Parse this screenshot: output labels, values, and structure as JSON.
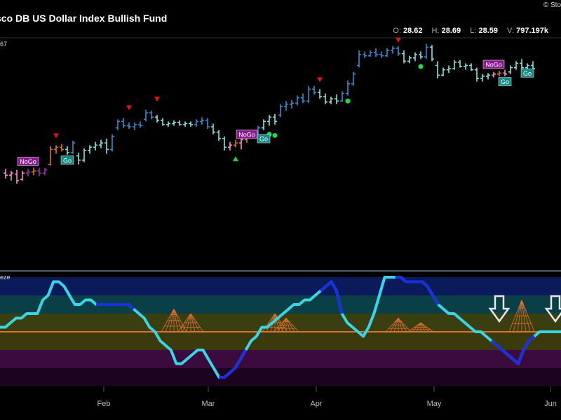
{
  "header": {
    "title": "sco DB US Dollar Index Bullish Fund",
    "brand": "© Sto",
    "ohlc": [
      {
        "k": "O:",
        "v": "28.62"
      },
      {
        "k": "H:",
        "v": "28.69"
      },
      {
        "k": "L:",
        "v": "28.59"
      },
      {
        "k": "V:",
        "v": "797.197k"
      }
    ],
    "volume_tag": "67",
    "indicator_tag": "eze"
  },
  "chart_data": {
    "type": "line",
    "x_ticks": [
      "Feb",
      "Mar",
      "Apr",
      "May",
      "Jun"
    ],
    "colors": {
      "strong_go": "#2a8fd8",
      "go": "#7fe6e0",
      "nogo": "#9a2fb0",
      "weak_nogo": "#ff8ad0",
      "counter": "#e07030",
      "triangle_down": "#e8101c",
      "triangle_up": "#20d040",
      "dot": "#10e050",
      "osc_fast": "#39d5e5",
      "osc_slow": "#1a2fe0",
      "osc_zero": "#e07030"
    },
    "price_bars": [
      {
        "t": 0,
        "o": 27.62,
        "h": 27.66,
        "l": 27.57,
        "c": 27.6,
        "s": "weak_nogo"
      },
      {
        "t": 1,
        "o": 27.6,
        "h": 27.64,
        "l": 27.55,
        "c": 27.62,
        "s": "weak_nogo"
      },
      {
        "t": 2,
        "o": 27.61,
        "h": 27.65,
        "l": 27.52,
        "c": 27.55,
        "s": "weak_nogo"
      },
      {
        "t": 3,
        "o": 27.56,
        "h": 27.64,
        "l": 27.55,
        "c": 27.62,
        "s": "weak_nogo"
      },
      {
        "t": 4,
        "o": 27.62,
        "h": 27.66,
        "l": 27.59,
        "c": 27.63,
        "s": "nogo"
      },
      {
        "t": 5,
        "o": 27.63,
        "h": 27.67,
        "l": 27.6,
        "c": 27.64,
        "s": "counter"
      },
      {
        "t": 6,
        "o": 27.64,
        "h": 27.67,
        "l": 27.59,
        "c": 27.62,
        "s": "nogo"
      },
      {
        "t": 7,
        "o": 27.62,
        "h": 27.67,
        "l": 27.6,
        "c": 27.65,
        "s": "nogo"
      },
      {
        "t": 8,
        "o": 27.7,
        "h": 27.87,
        "l": 27.69,
        "c": 27.84,
        "s": "counter"
      },
      {
        "t": 9,
        "o": 27.84,
        "h": 27.88,
        "l": 27.8,
        "c": 27.86,
        "s": "counter"
      },
      {
        "t": 10,
        "o": 27.86,
        "h": 27.89,
        "l": 27.82,
        "c": 27.84,
        "s": "counter"
      },
      {
        "t": 11,
        "o": 27.84,
        "h": 27.87,
        "l": 27.79,
        "c": 27.81,
        "s": "go"
      },
      {
        "t": 12,
        "o": 27.81,
        "h": 27.92,
        "l": 27.8,
        "c": 27.9,
        "s": "strong_go"
      },
      {
        "t": 13,
        "o": 27.78,
        "h": 27.81,
        "l": 27.7,
        "c": 27.74,
        "s": "go"
      },
      {
        "t": 14,
        "o": 27.74,
        "h": 27.85,
        "l": 27.72,
        "c": 27.83,
        "s": "go"
      },
      {
        "t": 15,
        "o": 27.83,
        "h": 27.88,
        "l": 27.8,
        "c": 27.86,
        "s": "go"
      },
      {
        "t": 16,
        "o": 27.86,
        "h": 27.91,
        "l": 27.83,
        "c": 27.88,
        "s": "go"
      },
      {
        "t": 17,
        "o": 27.88,
        "h": 27.93,
        "l": 27.85,
        "c": 27.9,
        "s": "go"
      },
      {
        "t": 18,
        "o": 27.9,
        "h": 27.94,
        "l": 27.8,
        "c": 27.84,
        "s": "go"
      },
      {
        "t": 19,
        "o": 27.84,
        "h": 27.98,
        "l": 27.82,
        "c": 27.96,
        "s": "strong_go"
      },
      {
        "t": 20,
        "o": 28.04,
        "h": 28.12,
        "l": 28.02,
        "c": 28.1,
        "s": "strong_go"
      },
      {
        "t": 21,
        "o": 28.1,
        "h": 28.13,
        "l": 28.04,
        "c": 28.06,
        "s": "strong_go"
      },
      {
        "t": 22,
        "o": 28.06,
        "h": 28.09,
        "l": 28.03,
        "c": 28.05,
        "s": "strong_go"
      },
      {
        "t": 23,
        "o": 28.05,
        "h": 28.09,
        "l": 28.02,
        "c": 28.07,
        "s": "strong_go"
      },
      {
        "t": 24,
        "o": 28.07,
        "h": 28.1,
        "l": 28.04,
        "c": 28.06,
        "s": "strong_go"
      },
      {
        "t": 25,
        "o": 28.12,
        "h": 28.21,
        "l": 28.1,
        "c": 28.18,
        "s": "strong_go"
      },
      {
        "t": 26,
        "o": 28.18,
        "h": 28.2,
        "l": 28.12,
        "c": 28.14,
        "s": "strong_go"
      },
      {
        "t": 27,
        "o": 28.14,
        "h": 28.16,
        "l": 28.09,
        "c": 28.11,
        "s": "go"
      },
      {
        "t": 28,
        "o": 28.11,
        "h": 28.13,
        "l": 28.06,
        "c": 28.07,
        "s": "go"
      },
      {
        "t": 29,
        "o": 28.07,
        "h": 28.1,
        "l": 28.05,
        "c": 28.08,
        "s": "go"
      },
      {
        "t": 30,
        "o": 28.08,
        "h": 28.11,
        "l": 28.06,
        "c": 28.09,
        "s": "go"
      },
      {
        "t": 31,
        "o": 28.09,
        "h": 28.11,
        "l": 28.06,
        "c": 28.07,
        "s": "go"
      },
      {
        "t": 32,
        "o": 28.07,
        "h": 28.1,
        "l": 28.05,
        "c": 28.08,
        "s": "go"
      },
      {
        "t": 33,
        "o": 28.08,
        "h": 28.1,
        "l": 28.05,
        "c": 28.07,
        "s": "go"
      },
      {
        "t": 34,
        "o": 28.07,
        "h": 28.12,
        "l": 28.05,
        "c": 28.1,
        "s": "strong_go"
      },
      {
        "t": 35,
        "o": 28.1,
        "h": 28.14,
        "l": 28.07,
        "c": 28.11,
        "s": "strong_go"
      },
      {
        "t": 36,
        "o": 28.11,
        "h": 28.13,
        "l": 28.03,
        "c": 28.05,
        "s": "strong_go"
      },
      {
        "t": 37,
        "o": 28.05,
        "h": 28.08,
        "l": 27.98,
        "c": 28.0,
        "s": "go"
      },
      {
        "t": 38,
        "o": 28.0,
        "h": 28.02,
        "l": 27.92,
        "c": 27.94,
        "s": "go"
      },
      {
        "t": 39,
        "o": 27.94,
        "h": 27.96,
        "l": 27.83,
        "c": 27.86,
        "s": "go"
      },
      {
        "t": 40,
        "o": 27.86,
        "h": 27.91,
        "l": 27.83,
        "c": 27.88,
        "s": "weak_nogo"
      },
      {
        "t": 41,
        "o": 27.88,
        "h": 27.93,
        "l": 27.86,
        "c": 27.9,
        "s": "counter"
      },
      {
        "t": 42,
        "o": 27.9,
        "h": 27.95,
        "l": 27.84,
        "c": 27.93,
        "s": "weak_nogo"
      },
      {
        "t": 43,
        "o": 27.93,
        "h": 27.98,
        "l": 27.9,
        "c": 27.96,
        "s": "counter"
      },
      {
        "t": 44,
        "o": 27.96,
        "h": 28.02,
        "l": 27.94,
        "c": 28.0,
        "s": "counter"
      },
      {
        "t": 45,
        "o": 28.0,
        "h": 28.06,
        "l": 27.98,
        "c": 28.04,
        "s": "strong_go"
      },
      {
        "t": 46,
        "o": 28.04,
        "h": 28.12,
        "l": 28.02,
        "c": 28.1,
        "s": "go"
      },
      {
        "t": 47,
        "o": 28.1,
        "h": 28.16,
        "l": 28.06,
        "c": 28.14,
        "s": "go"
      },
      {
        "t": 48,
        "o": 28.14,
        "h": 28.17,
        "l": 28.07,
        "c": 28.1,
        "s": "go"
      },
      {
        "t": 49,
        "o": 28.16,
        "h": 28.26,
        "l": 28.14,
        "c": 28.24,
        "s": "strong_go"
      },
      {
        "t": 50,
        "o": 28.24,
        "h": 28.29,
        "l": 28.2,
        "c": 28.26,
        "s": "strong_go"
      },
      {
        "t": 51,
        "o": 28.26,
        "h": 28.3,
        "l": 28.22,
        "c": 28.27,
        "s": "strong_go"
      },
      {
        "t": 52,
        "o": 28.27,
        "h": 28.34,
        "l": 28.25,
        "c": 28.32,
        "s": "strong_go"
      },
      {
        "t": 53,
        "o": 28.32,
        "h": 28.36,
        "l": 28.27,
        "c": 28.29,
        "s": "strong_go"
      },
      {
        "t": 54,
        "o": 28.29,
        "h": 28.43,
        "l": 28.27,
        "c": 28.4,
        "s": "strong_go"
      },
      {
        "t": 55,
        "o": 28.4,
        "h": 28.43,
        "l": 28.35,
        "c": 28.37,
        "s": "strong_go"
      },
      {
        "t": 56,
        "o": 28.37,
        "h": 28.4,
        "l": 28.31,
        "c": 28.33,
        "s": "go"
      },
      {
        "t": 57,
        "o": 28.33,
        "h": 28.36,
        "l": 28.26,
        "c": 28.28,
        "s": "go"
      },
      {
        "t": 58,
        "o": 28.28,
        "h": 28.33,
        "l": 28.26,
        "c": 28.31,
        "s": "go"
      },
      {
        "t": 59,
        "o": 28.31,
        "h": 28.35,
        "l": 28.26,
        "c": 28.29,
        "s": "go"
      },
      {
        "t": 60,
        "o": 28.29,
        "h": 28.38,
        "l": 28.28,
        "c": 28.36,
        "s": "strong_go"
      },
      {
        "t": 61,
        "o": 28.36,
        "h": 28.48,
        "l": 28.34,
        "c": 28.45,
        "s": "strong_go"
      },
      {
        "t": 62,
        "o": 28.45,
        "h": 28.56,
        "l": 28.43,
        "c": 28.54,
        "s": "strong_go"
      },
      {
        "t": 63,
        "o": 28.62,
        "h": 28.76,
        "l": 28.6,
        "c": 28.72,
        "s": "strong_go"
      },
      {
        "t": 64,
        "o": 28.72,
        "h": 28.75,
        "l": 28.69,
        "c": 28.71,
        "s": "strong_go"
      },
      {
        "t": 65,
        "o": 28.71,
        "h": 28.76,
        "l": 28.7,
        "c": 28.74,
        "s": "strong_go"
      },
      {
        "t": 66,
        "o": 28.74,
        "h": 28.78,
        "l": 28.7,
        "c": 28.72,
        "s": "strong_go"
      },
      {
        "t": 67,
        "o": 28.72,
        "h": 28.75,
        "l": 28.69,
        "c": 28.71,
        "s": "strong_go"
      },
      {
        "t": 68,
        "o": 28.71,
        "h": 28.78,
        "l": 28.7,
        "c": 28.76,
        "s": "strong_go"
      },
      {
        "t": 69,
        "o": 28.76,
        "h": 28.8,
        "l": 28.73,
        "c": 28.78,
        "s": "strong_go"
      },
      {
        "t": 70,
        "o": 28.78,
        "h": 28.8,
        "l": 28.71,
        "c": 28.73,
        "s": "strong_go"
      },
      {
        "t": 71,
        "o": 28.73,
        "h": 28.76,
        "l": 28.64,
        "c": 28.66,
        "s": "go"
      },
      {
        "t": 72,
        "o": 28.66,
        "h": 28.71,
        "l": 28.64,
        "c": 28.69,
        "s": "go"
      },
      {
        "t": 73,
        "o": 28.69,
        "h": 28.74,
        "l": 28.66,
        "c": 28.72,
        "s": "go"
      },
      {
        "t": 74,
        "o": 28.72,
        "h": 28.75,
        "l": 28.68,
        "c": 28.7,
        "s": "go"
      },
      {
        "t": 75,
        "o": 28.7,
        "h": 28.82,
        "l": 28.68,
        "c": 28.79,
        "s": "strong_go"
      },
      {
        "t": 76,
        "o": 28.79,
        "h": 28.81,
        "l": 28.66,
        "c": 28.68,
        "s": "go"
      },
      {
        "t": 77,
        "o": 28.62,
        "h": 28.66,
        "l": 28.5,
        "c": 28.53,
        "s": "go"
      },
      {
        "t": 78,
        "o": 28.53,
        "h": 28.6,
        "l": 28.52,
        "c": 28.58,
        "s": "go"
      },
      {
        "t": 79,
        "o": 28.58,
        "h": 28.62,
        "l": 28.55,
        "c": 28.59,
        "s": "go"
      },
      {
        "t": 80,
        "o": 28.59,
        "h": 28.67,
        "l": 28.58,
        "c": 28.65,
        "s": "go"
      },
      {
        "t": 81,
        "o": 28.65,
        "h": 28.67,
        "l": 28.6,
        "c": 28.61,
        "s": "go"
      },
      {
        "t": 82,
        "o": 28.61,
        "h": 28.64,
        "l": 28.58,
        "c": 28.62,
        "s": "go"
      },
      {
        "t": 83,
        "o": 28.62,
        "h": 28.64,
        "l": 28.57,
        "c": 28.58,
        "s": "go"
      },
      {
        "t": 84,
        "o": 28.58,
        "h": 28.6,
        "l": 28.47,
        "c": 28.5,
        "s": "go"
      },
      {
        "t": 85,
        "o": 28.5,
        "h": 28.54,
        "l": 28.47,
        "c": 28.52,
        "s": "go"
      },
      {
        "t": 86,
        "o": 28.52,
        "h": 28.55,
        "l": 28.49,
        "c": 28.53,
        "s": "go"
      },
      {
        "t": 87,
        "o": 28.53,
        "h": 28.56,
        "l": 28.51,
        "c": 28.54,
        "s": "weak_nogo"
      },
      {
        "t": 88,
        "o": 28.54,
        "h": 28.57,
        "l": 28.52,
        "c": 28.55,
        "s": "counter"
      },
      {
        "t": 89,
        "o": 28.55,
        "h": 28.58,
        "l": 28.52,
        "c": 28.54,
        "s": "weak_nogo"
      },
      {
        "t": 90,
        "o": 28.56,
        "h": 28.62,
        "l": 28.54,
        "c": 28.6,
        "s": "go"
      },
      {
        "t": 91,
        "o": 28.6,
        "h": 28.66,
        "l": 28.58,
        "c": 28.64,
        "s": "go"
      },
      {
        "t": 92,
        "o": 28.64,
        "h": 28.68,
        "l": 28.58,
        "c": 28.6,
        "s": "go"
      },
      {
        "t": 93,
        "o": 28.6,
        "h": 28.64,
        "l": 28.55,
        "c": 28.62,
        "s": "go"
      },
      {
        "t": 94,
        "o": 28.62,
        "h": 28.66,
        "l": 28.57,
        "c": 28.59,
        "s": "go"
      }
    ],
    "markers": [
      {
        "type": "triangle_down",
        "t": 9,
        "v": 27.97
      },
      {
        "type": "triangle_down",
        "t": 22,
        "v": 28.23
      },
      {
        "type": "triangle_down",
        "t": 27,
        "v": 28.31
      },
      {
        "type": "triangle_up",
        "t": 41,
        "v": 27.75
      },
      {
        "type": "triangle_down",
        "t": 56,
        "v": 28.49
      },
      {
        "type": "triangle_down",
        "t": 70,
        "v": 28.86
      },
      {
        "type": "dot",
        "t": 47,
        "v": 27.98
      },
      {
        "type": "dot",
        "t": 48,
        "v": 27.97
      },
      {
        "type": "dot",
        "t": 61,
        "v": 28.29
      },
      {
        "type": "dot",
        "t": 74,
        "v": 28.61
      }
    ],
    "labels": [
      {
        "text": "NoGo",
        "t": 4,
        "v": 27.73,
        "kind": "nogo"
      },
      {
        "text": "Go",
        "t": 11,
        "v": 27.74,
        "kind": "go"
      },
      {
        "text": "NoGo",
        "t": 43,
        "v": 27.98,
        "kind": "nogo"
      },
      {
        "text": "Go",
        "t": 46,
        "v": 27.94,
        "kind": "go"
      },
      {
        "text": "NoGo",
        "t": 87,
        "v": 28.63,
        "kind": "nogo"
      },
      {
        "text": "Go",
        "t": 89,
        "v": 28.47,
        "kind": "go"
      },
      {
        "text": "Go",
        "t": 93,
        "v": 28.55,
        "kind": "go"
      }
    ],
    "oscillator": {
      "ylim": [
        -6,
        6
      ],
      "fast": [
        0.5,
        0.5,
        1,
        1.5,
        1.5,
        2,
        2,
        2,
        3.5,
        4,
        5.5,
        5.5,
        5,
        4,
        3,
        3,
        3.5,
        3.5,
        3,
        3,
        3,
        3,
        3,
        3,
        3,
        2.5,
        2,
        1.5,
        0.5,
        0,
        -1,
        -1.5,
        -2,
        -3.5,
        -3.5,
        -3,
        -2.5,
        -2,
        -2,
        -3,
        -4,
        -5,
        -5,
        -4.5,
        -4,
        -3,
        -2,
        -1,
        -0.5,
        0.5,
        0.5,
        1,
        1.5,
        2,
        2.5,
        3,
        3,
        3.5,
        3.5,
        4,
        4.5,
        5,
        5.5,
        4.5,
        2,
        1,
        0.5,
        0,
        -0.5,
        0.5,
        2,
        4,
        6,
        6,
        6,
        6,
        5.5,
        5.5,
        5.5,
        5.5,
        5,
        4,
        3,
        2.5,
        2,
        2,
        1.5,
        1,
        0.5,
        0,
        0,
        -0.5,
        -1,
        -1.5,
        -2,
        -2.5,
        -3,
        -3.5,
        -2,
        -1,
        -0.5,
        0,
        0,
        0,
        0,
        0
      ],
      "slow_segments": [
        [
          18,
          25
        ],
        [
          41,
          46
        ],
        [
          60,
          64
        ],
        [
          74,
          82
        ],
        [
          92,
          100
        ]
      ],
      "zero_value": 0,
      "bands": [
        {
          "from": 4,
          "to": 6,
          "color": "#0b1a5a"
        },
        {
          "from": 2,
          "to": 4,
          "color": "#0b3f48"
        },
        {
          "from": 0,
          "to": 2,
          "color": "#3a3f12"
        },
        {
          "from": -2,
          "to": 0,
          "color": "#3a3a0c"
        },
        {
          "from": -4,
          "to": -2,
          "color": "#3b0b3d"
        },
        {
          "from": -6,
          "to": -4,
          "color": "#1c0320"
        }
      ],
      "squeeze_cones": [
        {
          "t": 30,
          "height": 2.5
        },
        {
          "t": 33,
          "height": 2
        },
        {
          "t": 48,
          "height": 2
        },
        {
          "t": 50,
          "height": 1.5
        },
        {
          "t": 70,
          "height": 1.5
        },
        {
          "t": 74,
          "height": 1
        },
        {
          "t": 92,
          "height": 3.5
        }
      ],
      "arrows": [
        {
          "t": 88
        },
        {
          "t": 98
        }
      ]
    }
  }
}
